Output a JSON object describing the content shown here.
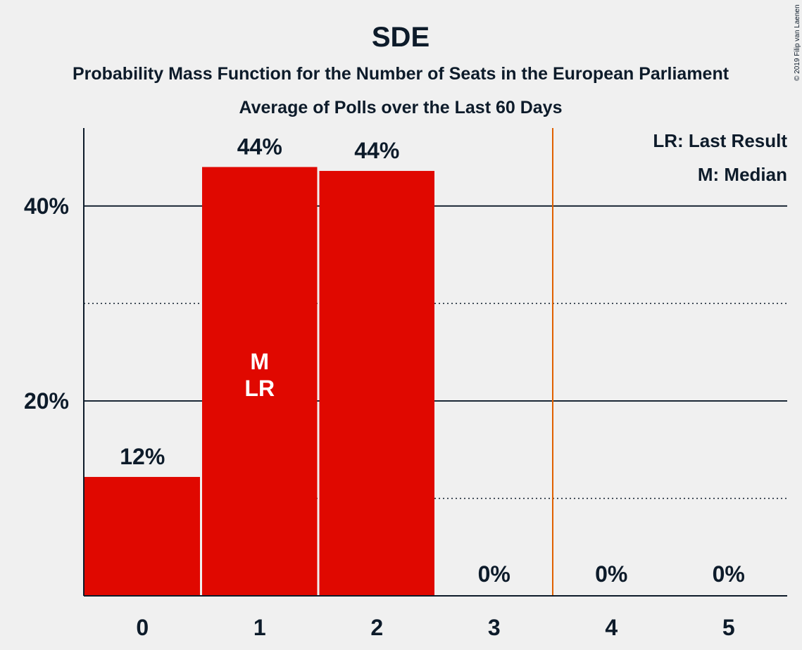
{
  "chart_data": {
    "type": "bar",
    "title": "SDE",
    "subtitle": "Probability Mass Function for the Number of Seats in the European Parliament",
    "subtitle2": "Average of Polls over the Last 60 Days",
    "copyright": "© 2019 Filip van Laenen",
    "categories": [
      "0",
      "1",
      "2",
      "3",
      "4",
      "5"
    ],
    "values": [
      12.2,
      44.0,
      43.6,
      0,
      0,
      0
    ],
    "value_labels": [
      "12%",
      "44%",
      "44%",
      "0%",
      "0%",
      "0%"
    ],
    "ylim": [
      0,
      48
    ],
    "yticks": [
      20,
      40
    ],
    "ytick_labels": [
      "20%",
      "40%"
    ],
    "minor_gridlines": [
      10,
      30
    ],
    "bar_color": "#e00800",
    "last_result_line_color": "#e06000",
    "last_result_line_after_category": "3",
    "median_category": "1",
    "last_result_category": "1",
    "inner_labels": [
      "M",
      "LR"
    ],
    "legend": [
      "LR: Last Result",
      "M: Median"
    ],
    "legend_position": "top-right"
  }
}
